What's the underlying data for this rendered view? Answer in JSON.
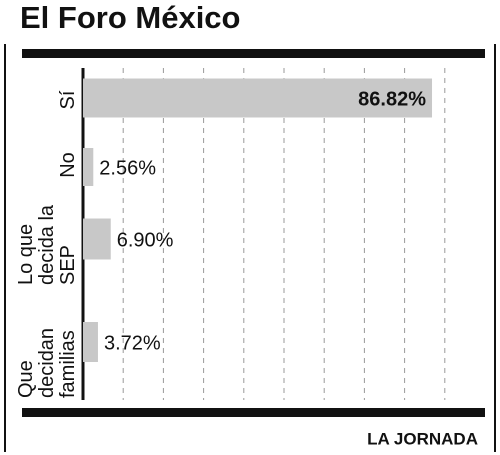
{
  "chart_data": {
    "type": "bar",
    "orientation": "horizontal",
    "title": "El Foro México",
    "categories": [
      "Sí",
      "No",
      "Lo que decida la SEP",
      "Que decidan familias"
    ],
    "values": [
      86.82,
      2.56,
      6.9,
      3.72
    ],
    "value_labels": [
      "86.82%",
      "2.56%",
      "6.90%",
      "3.72%"
    ],
    "color": "#c8c8c8",
    "xlim": [
      0,
      100
    ],
    "xticks": [
      10,
      20,
      30,
      40,
      50,
      60,
      70,
      80,
      90
    ],
    "grid": true,
    "source": "LA JORNADA"
  }
}
